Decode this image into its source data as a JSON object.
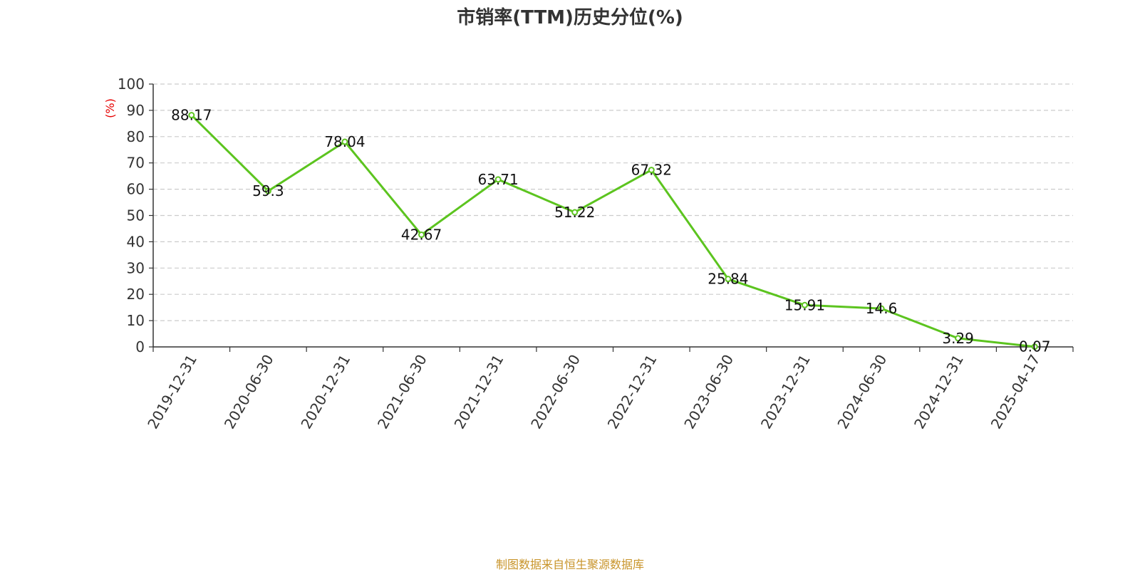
{
  "title": "市销率(TTM)历史分位(%)",
  "footer": "制图数据来自恒生聚源数据库",
  "colors": {
    "line": "#5cc41f",
    "unit_label": "#e60000",
    "grid": "#cccccc",
    "axis": "#333333",
    "footer": "#c8942a"
  },
  "chart_data": {
    "type": "line",
    "title": "市销率(TTM)历史分位(%)",
    "ylabel": "(%)",
    "xlabel": "",
    "ylim": [
      0,
      100
    ],
    "yticks": [
      0,
      10,
      20,
      30,
      40,
      50,
      60,
      70,
      80,
      90,
      100
    ],
    "grid": true,
    "categories": [
      "2019-12-31",
      "2020-06-30",
      "2020-12-31",
      "2021-06-30",
      "2021-12-31",
      "2022-06-30",
      "2022-12-31",
      "2023-06-30",
      "2023-12-31",
      "2024-06-30",
      "2024-12-31",
      "2025-04-17"
    ],
    "series": [
      {
        "values": [
          88.17,
          59.3,
          78.04,
          42.67,
          63.71,
          51.22,
          67.32,
          25.84,
          15.91,
          14.6,
          3.29,
          0.07
        ],
        "labels": [
          "88.17",
          "59.3",
          "78.04",
          "42.67",
          "63.71",
          "51.22",
          "67.32",
          "25.84",
          "15.91",
          "14.6",
          "3.29",
          "0.07"
        ]
      }
    ]
  }
}
